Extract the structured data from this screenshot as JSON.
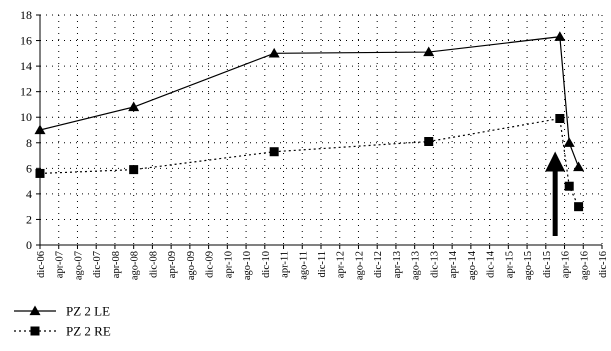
{
  "chart_data": {
    "type": "line",
    "title": "",
    "xlabel": "",
    "ylabel": "",
    "ylim": [
      0,
      18
    ],
    "yticks": [
      0,
      2,
      4,
      6,
      8,
      10,
      12,
      14,
      16,
      18
    ],
    "x_tick_labels": [
      "dic-06",
      "apr-07",
      "ago-07",
      "dic-07",
      "apr-08",
      "ago-08",
      "dic-08",
      "apr-09",
      "ago-09",
      "dic-09",
      "apr-10",
      "ago-10",
      "dic-10",
      "apr-11",
      "ago-11",
      "dic-11",
      "apr-12",
      "ago-12",
      "dic-12",
      "apr-13",
      "ago-13",
      "dic-13",
      "apr-14",
      "ago-14",
      "dic-14",
      "apr-15",
      "ago-15",
      "dic-15",
      "apr-16",
      "ago-16",
      "dic-16"
    ],
    "grid": true,
    "legend": "bottom-left",
    "series": [
      {
        "name": "PZ 2 LE",
        "marker": "triangle",
        "line_style": "solid",
        "x": [
          "dic-06",
          "ago-08",
          "feb-11",
          "nov-13",
          "mar-16",
          "may-16",
          "jul-16"
        ],
        "y": [
          9.0,
          10.8,
          15.0,
          15.1,
          16.3,
          8.0,
          6.1
        ]
      },
      {
        "name": "PZ 2 RE",
        "marker": "square",
        "line_style": "dotted",
        "x": [
          "dic-06",
          "ago-08",
          "feb-11",
          "nov-13",
          "mar-16",
          "may-16",
          "jul-16"
        ],
        "y": [
          5.6,
          5.9,
          7.3,
          8.1,
          9.9,
          4.6,
          3.0
        ]
      }
    ],
    "annotations": [
      {
        "type": "arrow",
        "direction": "up",
        "x": "feb-16",
        "from_y": 0.7,
        "to_y": 7.0,
        "color": "#000000"
      }
    ]
  }
}
